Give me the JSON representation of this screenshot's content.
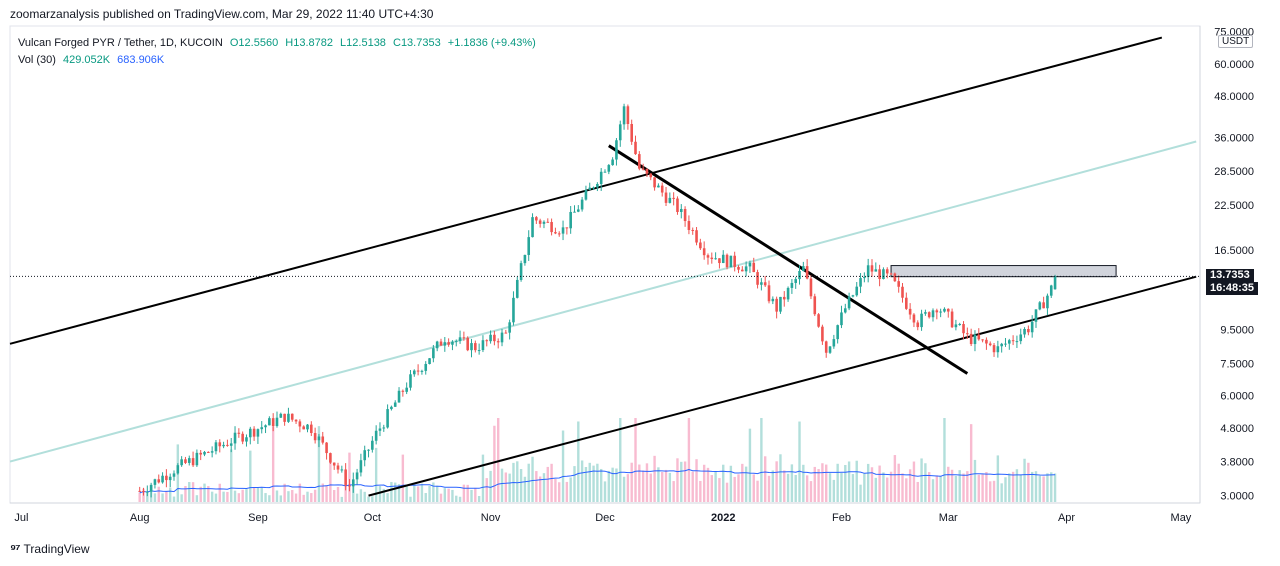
{
  "header": {
    "publisher": "zoomarzanalysis published on TradingView.com, Mar 29, 2022 11:40 UTC+4:30"
  },
  "legend": {
    "symbol": "Vulcan Forged PYR / Tether, 1D, KUCOIN",
    "open": "O12.5560",
    "high": "H13.8782",
    "low": "L12.5138",
    "close": "C13.7353",
    "change": "+1.1836 (+9.43%)",
    "vol_label": "Vol (30)",
    "vol_value": "429.052K",
    "vol_ma": "683.906K"
  },
  "price_axis": {
    "currency": "USDT",
    "ticks": [
      "75.0000",
      "60.0000",
      "48.0000",
      "36.0000",
      "28.5000",
      "22.5000",
      "16.5000",
      "9.5000",
      "7.5000",
      "6.0000",
      "4.8000",
      "3.8000",
      "3.0000"
    ],
    "last_price": "13.7353",
    "countdown": "16:48:35"
  },
  "time_axis": {
    "ticks": [
      "Jul",
      "Aug",
      "Sep",
      "Oct",
      "Nov",
      "Dec",
      "2022",
      "Feb",
      "Mar",
      "Apr",
      "May"
    ]
  },
  "footer": {
    "brand": "TradingView"
  },
  "colors": {
    "up": "#26a69a",
    "down": "#ef5350",
    "up_vol": "#b2dfdb",
    "down_vol": "#f8bbd0",
    "channel_mid": "#b2dfdb",
    "vol_ma": "#2962ff",
    "resistance_box": "#d1d4dc"
  },
  "chart_data": {
    "type": "candlestick",
    "title": "Vulcan Forged PYR / Tether, 1D, KUCOIN",
    "y_scale": "log",
    "ylim": [
      2.85,
      78
    ],
    "x_start": "2021-06-28",
    "xlim": [
      "2021-06-28",
      "2022-05-06"
    ],
    "ohlc_sampled": [
      {
        "date": "2021-08-01",
        "close": 3.1
      },
      {
        "date": "2021-08-10",
        "close": 3.6
      },
      {
        "date": "2021-08-25",
        "close": 4.4
      },
      {
        "date": "2021-09-08",
        "close": 5.2
      },
      {
        "date": "2021-09-15",
        "close": 4.8
      },
      {
        "date": "2021-09-25",
        "close": 3.2
      },
      {
        "date": "2021-10-02",
        "close": 4.6
      },
      {
        "date": "2021-10-10",
        "close": 6.5
      },
      {
        "date": "2021-10-20",
        "close": 9.0
      },
      {
        "date": "2021-10-28",
        "close": 8.4
      },
      {
        "date": "2021-11-05",
        "close": 9.2
      },
      {
        "date": "2021-11-12",
        "close": 20.5
      },
      {
        "date": "2021-11-20",
        "close": 19.0
      },
      {
        "date": "2021-11-27",
        "close": 25.0
      },
      {
        "date": "2021-12-03",
        "close": 32.0
      },
      {
        "date": "2021-12-06",
        "close": 44.0
      },
      {
        "date": "2021-12-10",
        "close": 29.0
      },
      {
        "date": "2021-12-20",
        "close": 22.0
      },
      {
        "date": "2021-12-28",
        "close": 16.0
      },
      {
        "date": "2022-01-08",
        "close": 14.5
      },
      {
        "date": "2022-01-15",
        "close": 11.0
      },
      {
        "date": "2022-01-22",
        "close": 14.5
      },
      {
        "date": "2022-01-28",
        "close": 8.2
      },
      {
        "date": "2022-02-02",
        "close": 11.0
      },
      {
        "date": "2022-02-08",
        "close": 14.5
      },
      {
        "date": "2022-02-14",
        "close": 13.5
      },
      {
        "date": "2022-02-21",
        "close": 10.0
      },
      {
        "date": "2022-02-26",
        "close": 11.2
      },
      {
        "date": "2022-03-06",
        "close": 9.0
      },
      {
        "date": "2022-03-14",
        "close": 8.3
      },
      {
        "date": "2022-03-22",
        "close": 9.6
      },
      {
        "date": "2022-03-28",
        "close": 12.6
      },
      {
        "date": "2022-03-29",
        "open": 12.556,
        "high": 13.8782,
        "low": 12.5138,
        "close": 13.7353
      }
    ],
    "drawings": [
      {
        "name": "channel-upper",
        "from": {
          "date": "2021-06-28",
          "price": 8.6
        },
        "to": {
          "date": "2022-04-26",
          "price": 72
        }
      },
      {
        "name": "channel-mid",
        "from": {
          "date": "2021-06-28",
          "price": 3.8
        },
        "to": {
          "date": "2022-05-05",
          "price": 35
        }
      },
      {
        "name": "channel-lower",
        "from": {
          "date": "2021-09-30",
          "price": 3.0
        },
        "to": {
          "date": "2022-05-05",
          "price": 13.7
        }
      },
      {
        "name": "downtrend",
        "from": {
          "date": "2021-12-02",
          "price": 34
        },
        "to": {
          "date": "2022-03-06",
          "price": 7.0
        }
      }
    ],
    "zones": [
      {
        "name": "resistance-zone",
        "from_date": "2022-02-14",
        "to_date": "2022-04-14",
        "price_low": 13.7,
        "price_high": 14.8
      }
    ]
  }
}
